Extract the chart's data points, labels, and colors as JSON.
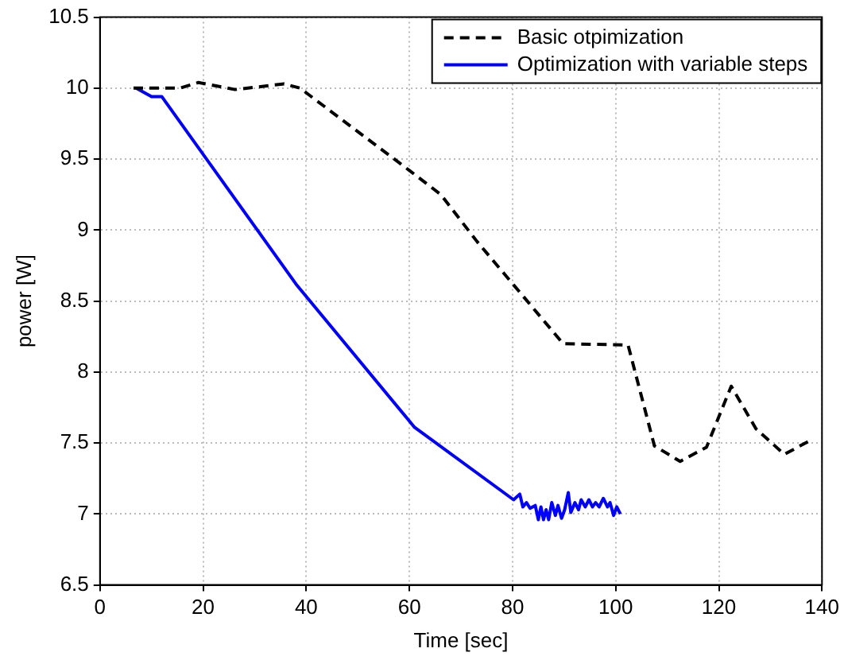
{
  "chart_data": {
    "type": "line",
    "xlabel": "Time [sec]",
    "ylabel": "power [W]",
    "xlim": [
      0,
      140
    ],
    "xticks": [
      0,
      20,
      40,
      60,
      80,
      100,
      120,
      140
    ],
    "ylim": [
      6.5,
      10.5
    ],
    "yticks": [
      6.5,
      7,
      7.5,
      8,
      8.5,
      9,
      9.5,
      10,
      10.5
    ],
    "grid": true,
    "legend": "top right",
    "marker": "none",
    "series": [
      {
        "name": "Basic otpimization",
        "color": "#000000",
        "line_style": "dashed",
        "x": [
          6.5,
          10.4,
          15.5,
          19.1,
          26.2,
          35.7,
          38.8,
          60,
          66.1,
          73.1,
          89.8,
          102.4,
          107.5,
          112.5,
          117.6,
          122.4,
          127.2,
          132.7,
          137.3
        ],
        "values": [
          10,
          10,
          10,
          10.04,
          9.99,
          10.03,
          10,
          9.42,
          9.25,
          8.92,
          8.2,
          8.19,
          7.48,
          7.37,
          7.47,
          7.9,
          7.6,
          7.42,
          7.51
        ]
      },
      {
        "name": "Optimization with variable steps",
        "color": "#0000ff",
        "line_style": "solid",
        "x": [
          7,
          10,
          12,
          38,
          61,
          80.2,
          81.4,
          82,
          82.7,
          83.4,
          84.4,
          85,
          85.5,
          86,
          86.5,
          87,
          87.6,
          88.3,
          88.8,
          89.5,
          90.1,
          90.8,
          91.3,
          92.1,
          92.8,
          93.3,
          94.1,
          94.8,
          95.5,
          96.1,
          96.8,
          97.6,
          98.4,
          98.9,
          99.6,
          100.2,
          100.9
        ],
        "values": [
          10,
          9.94,
          9.94,
          8.62,
          7.61,
          7.1,
          7.14,
          7.05,
          7.08,
          7.04,
          7.06,
          6.96,
          7.05,
          6.96,
          7.03,
          6.96,
          7.08,
          6.99,
          7.06,
          6.97,
          7.03,
          7.15,
          7.01,
          7.08,
          7.03,
          7.1,
          7.05,
          7.1,
          7.05,
          7.08,
          7.05,
          7.11,
          7.05,
          7.08,
          6.99,
          7.05,
          7
        ]
      }
    ]
  }
}
